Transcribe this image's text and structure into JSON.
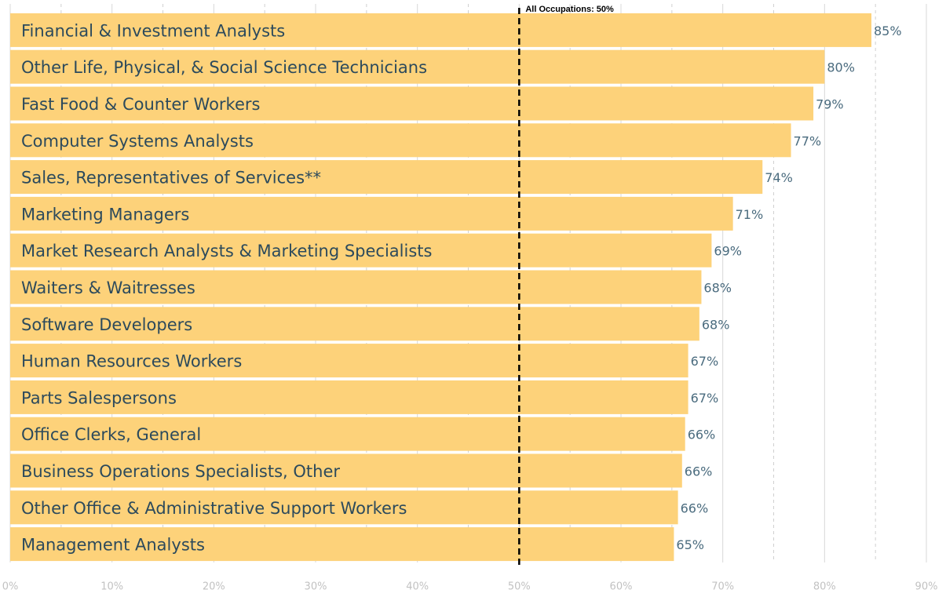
{
  "chart_data": {
    "type": "bar",
    "orientation": "horizontal",
    "categories": [
      "Financial & Investment Analysts",
      "Other Life, Physical, & Social Science Technicians",
      "Fast Food & Counter Workers",
      "Computer Systems Analysts",
      "Sales, Representatives of Services**",
      "Marketing Managers",
      "Market Research Analysts & Marketing Specialists",
      "Waiters & Waitresses",
      "Software Developers",
      "Human Resources Workers",
      "Parts Salespersons",
      "Office Clerks, General",
      "Business Operations Specialists, Other",
      "Other Office & Administrative Support Workers",
      "Management Analysts"
    ],
    "values": [
      84.6,
      80,
      78.9,
      76.7,
      73.9,
      71,
      68.9,
      67.9,
      67.7,
      66.6,
      66.6,
      66.3,
      66,
      65.6,
      65.2
    ],
    "value_labels": [
      "85%",
      "80%",
      "79%",
      "77%",
      "74%",
      "71%",
      "69%",
      "68%",
      "68%",
      "67%",
      "67%",
      "66%",
      "66%",
      "66%",
      "65%"
    ],
    "color": "#fdd27a",
    "xlim": [
      0,
      90
    ],
    "xticks": [
      {
        "value": 0,
        "label": "0%"
      },
      {
        "value": 10,
        "label": "10%"
      },
      {
        "value": 20,
        "label": "20%"
      },
      {
        "value": 30,
        "label": "30%"
      },
      {
        "value": 40,
        "label": "40%"
      },
      {
        "value": 50,
        "label": "50%"
      },
      {
        "value": 60,
        "label": "60%"
      },
      {
        "value": 70,
        "label": "70%"
      },
      {
        "value": 80,
        "label": "80%"
      },
      {
        "value": 90,
        "label": "90%"
      }
    ],
    "minor_xticks": [
      5,
      15,
      25,
      35,
      45,
      55,
      65,
      75,
      85
    ],
    "grid": true,
    "reference_line": {
      "value": 50,
      "label": "All Occupations: 50%"
    }
  }
}
